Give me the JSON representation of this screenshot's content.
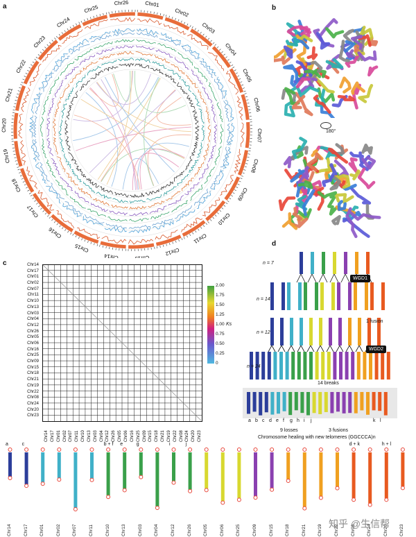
{
  "panels": {
    "a": "a",
    "b": "b",
    "c": "c",
    "d": "d"
  },
  "circos": {
    "chromosomes": [
      "Chr01",
      "Chr02",
      "Chr03",
      "Chr04",
      "Chr05",
      "Chr06",
      "Chr07",
      "Chr08",
      "Chr09",
      "Chr10",
      "Chr11",
      "Chr12",
      "Chr13",
      "Chr14",
      "Chr15",
      "Chr16",
      "Chr17",
      "Chr18",
      "Chr19",
      "Chr20",
      "Chr21",
      "Chr22",
      "Chr23",
      "Chr24",
      "Chr25",
      "Chr26"
    ]
  },
  "structure": {
    "rotation_label": "180°"
  },
  "dotplot": {
    "rows": [
      "Chr14",
      "Chr17",
      "Chr01",
      "Chr02",
      "Chr07",
      "Chr11",
      "Chr10",
      "Chr13",
      "Chr03",
      "Chr04",
      "Chr12",
      "Chr26",
      "Chr05",
      "Chr06",
      "Chr16",
      "Chr25",
      "Chr09",
      "Chr15",
      "Chr18",
      "Chr21",
      "Chr19",
      "Chr22",
      "Chr08",
      "Chr24",
      "Chr20",
      "Chr23"
    ],
    "cols": [
      "Chr14",
      "Chr17",
      "Chr01",
      "Chr02",
      "Chr07",
      "Chr11",
      "Chr10",
      "Chr13",
      "Chr03",
      "Chr04",
      "Chr12",
      "Chr26",
      "Chr05",
      "Chr06",
      "Chr16",
      "Chr25",
      "Chr09",
      "Chr15",
      "Chr18",
      "Chr21",
      "Chr19",
      "Chr22",
      "Chr08",
      "Chr24",
      "Chr20",
      "Chr23"
    ],
    "colorbar": {
      "ticks": [
        "2.00",
        "1.75",
        "1.50",
        "1.25",
        "1.00",
        "0.75",
        "0.50",
        "0.25",
        "0"
      ],
      "title": "Ks"
    }
  },
  "evolution": {
    "n7": "n = 7",
    "n14": "n = 14",
    "n12": "n = 12",
    "n24": "n = 24",
    "wgd1": "WGD1",
    "wgd2": "WGD2",
    "fusion": "1 fusion",
    "breaks": "14 breaks",
    "losses": "9 losses",
    "fusions3": "3 fusions",
    "healing": "Chromosome healing with new telomeres (GGCCCA)n",
    "letters": [
      "a",
      "b",
      "c",
      "d",
      "e",
      "f",
      "g",
      "h",
      "i",
      "j",
      "k",
      "l"
    ]
  },
  "bottom": {
    "chrs": [
      "Chr14",
      "Chr17",
      "Chr01",
      "Chr02",
      "Chr07",
      "Chr11",
      "Chr10",
      "Chr13",
      "Chr03",
      "Chr04",
      "Chr12",
      "Chr26",
      "Chr05",
      "Chr06",
      "Chr25",
      "Chr09",
      "Chr15",
      "Chr18",
      "Chr21",
      "Chr19",
      "Chr22",
      "Chr08",
      "Chr24",
      "Chr20",
      "Chr23"
    ],
    "tags": [
      "a",
      "c",
      "",
      "",
      "",
      "",
      "b + f",
      "e",
      "g",
      "",
      "i",
      "j",
      "",
      "",
      "",
      "",
      "",
      "",
      "",
      "",
      "",
      "d + k",
      "",
      "h + l",
      ""
    ]
  },
  "watermark": "知乎 @生信帮"
}
